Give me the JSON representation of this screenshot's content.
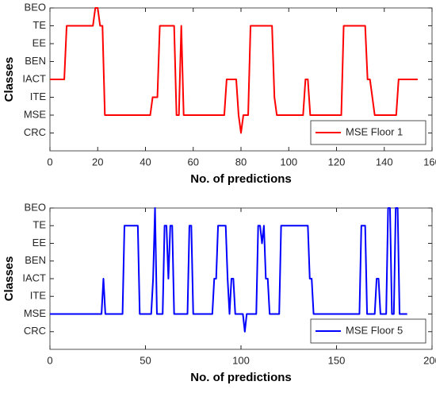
{
  "chart_data": [
    {
      "type": "line",
      "xlabel": "No. of predictions",
      "ylabel": "Classes",
      "x": [
        0,
        6,
        7,
        18,
        19,
        20,
        21,
        22,
        23,
        42,
        43,
        45,
        46,
        52,
        53,
        54,
        55,
        56,
        73,
        74,
        78,
        79,
        80,
        81,
        83,
        84,
        93,
        94,
        95,
        106,
        107,
        108,
        109,
        122,
        123,
        132,
        133,
        134,
        136,
        145,
        146,
        154
      ],
      "series": [
        {
          "name": "MSE Floor 1",
          "color": "#ff0000",
          "values": [
            4,
            4,
            7,
            7,
            8,
            8,
            7,
            7,
            2,
            2,
            3,
            3,
            7,
            7,
            2,
            2,
            7,
            2,
            2,
            4,
            4,
            2,
            1,
            2,
            2,
            7,
            7,
            3,
            2,
            2,
            4,
            4,
            2,
            2,
            7,
            7,
            4,
            4,
            2,
            2,
            4,
            4
          ]
        }
      ],
      "xlim": [
        0,
        160
      ],
      "xticks": [
        0,
        20,
        40,
        60,
        80,
        100,
        120,
        140,
        160
      ],
      "ylim": [
        0,
        8
      ],
      "yticks": [
        {
          "value": 1,
          "label": "CRC"
        },
        {
          "value": 2,
          "label": "MSE"
        },
        {
          "value": 3,
          "label": "ITE"
        },
        {
          "value": 4,
          "label": "IACT"
        },
        {
          "value": 5,
          "label": "BEN"
        },
        {
          "value": 6,
          "label": "EE"
        },
        {
          "value": 7,
          "label": "TE"
        },
        {
          "value": 8,
          "label": "BEO"
        }
      ],
      "legend": "lower right"
    },
    {
      "type": "line",
      "xlabel": "No. of predictions",
      "ylabel": "Classes",
      "x": [
        0,
        27,
        28,
        29,
        38,
        39,
        46,
        47,
        53,
        54,
        55,
        56,
        59,
        60,
        61,
        62,
        63,
        64,
        65,
        72,
        73,
        74,
        75,
        85,
        86,
        87,
        88,
        92,
        93,
        94,
        95,
        96,
        97,
        101,
        102,
        103,
        108,
        109,
        110,
        111,
        112,
        113,
        114,
        115,
        120,
        121,
        135,
        136,
        137,
        138,
        162,
        163,
        165,
        166,
        170,
        171,
        172,
        173,
        176,
        177,
        178,
        179,
        180,
        181,
        182,
        183,
        187
      ],
      "series": [
        {
          "name": "MSE Floor 5",
          "color": "#0000ff",
          "values": [
            2,
            2,
            4,
            2,
            2,
            7,
            7,
            2,
            2,
            4,
            8,
            2,
            2,
            7,
            7,
            4,
            7,
            7,
            2,
            2,
            7,
            7,
            2,
            2,
            4,
            4,
            7,
            7,
            4,
            2,
            4,
            4,
            2,
            2,
            1,
            2,
            2,
            7,
            7,
            6,
            7,
            4,
            4,
            2,
            2,
            7,
            7,
            4,
            4,
            2,
            2,
            7,
            7,
            2,
            2,
            4,
            4,
            2,
            2,
            8,
            8,
            2,
            2,
            8,
            8,
            2,
            2
          ]
        }
      ],
      "xlim": [
        0,
        200
      ],
      "xticks": [
        0,
        50,
        100,
        150,
        200
      ],
      "ylim": [
        0,
        8
      ],
      "yticks": [
        {
          "value": 1,
          "label": "CRC"
        },
        {
          "value": 2,
          "label": "MSE"
        },
        {
          "value": 3,
          "label": "ITE"
        },
        {
          "value": 4,
          "label": "IACT"
        },
        {
          "value": 5,
          "label": "BEN"
        },
        {
          "value": 6,
          "label": "EE"
        },
        {
          "value": 7,
          "label": "TE"
        },
        {
          "value": 8,
          "label": "BEO"
        }
      ],
      "legend": "lower right"
    }
  ]
}
